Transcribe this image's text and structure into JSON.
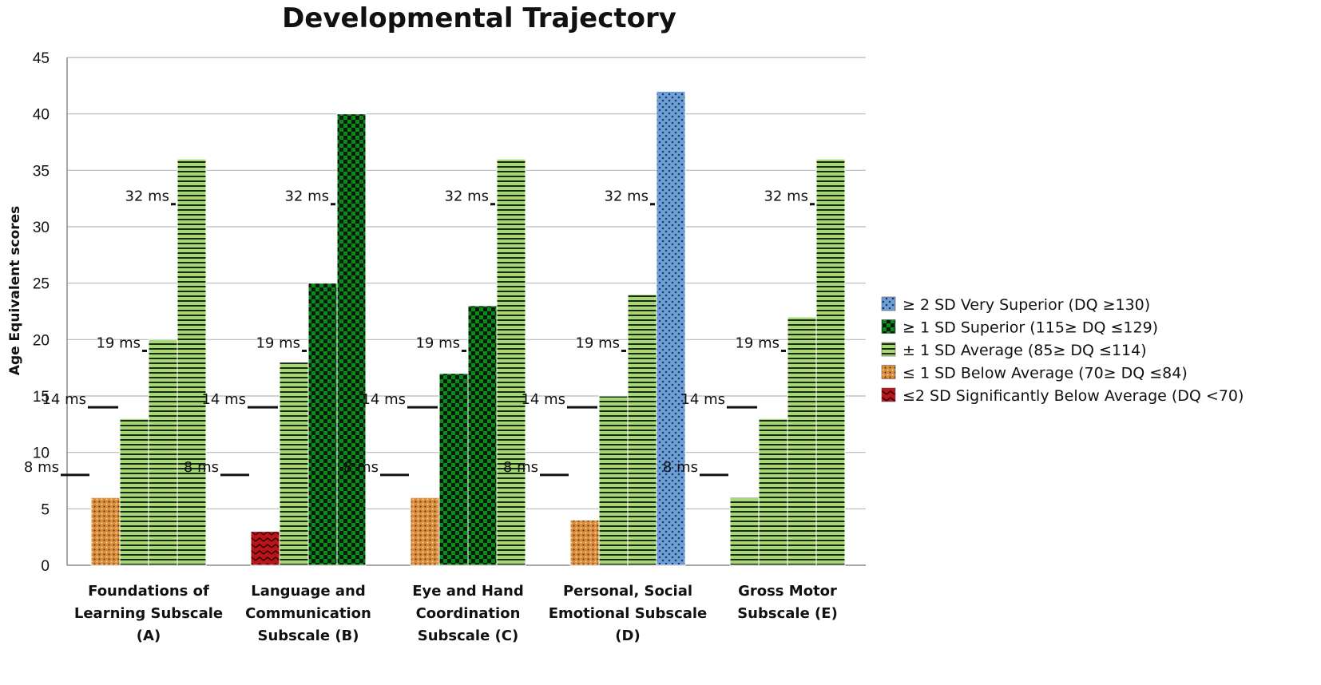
{
  "chart_data": {
    "type": "bar",
    "title": "Developmental Trajectory",
    "xlabel": "",
    "ylabel": "Age Equivalent scores",
    "ylim": [
      0,
      45
    ],
    "yticks": [
      "0",
      "5",
      "10",
      "15",
      "20",
      "25",
      "30",
      "35",
      "40",
      "45"
    ],
    "grid": true,
    "legend_position": "right",
    "categories": [
      [
        "Foundations of",
        "Learning Subscale",
        "(A)"
      ],
      [
        "Language and",
        "Communication",
        "Subscale (B)"
      ],
      [
        "Eye and Hand",
        "Coordination",
        "Subscale (C)"
      ],
      [
        "Personal, Social",
        "Emotional Subscale",
        "(D)"
      ],
      [
        "Gross Motor",
        "Subscale (E)"
      ]
    ],
    "legend": [
      {
        "key": "very_superior",
        "label": "≥ 2 SD Very Superior (DQ ≥130)",
        "color": "#6e9fd6"
      },
      {
        "key": "superior",
        "label": "≥ 1 SD Superior (115≥ DQ ≤129)",
        "color": "#0b8a1c"
      },
      {
        "key": "average",
        "label": "± 1 SD Average (85≥ DQ ≤114)",
        "color": "#a6d87a"
      },
      {
        "key": "below",
        "label": "≤ 1 SD Below Average (70≥ DQ ≤84)",
        "color": "#d98c3c"
      },
      {
        "key": "significantly_below",
        "label": "≤2 SD Significantly Below Average (DQ <70)",
        "color": "#b8161a"
      }
    ],
    "time_points": [
      "8 ms",
      "14 ms",
      "19 ms",
      "32 ms"
    ],
    "series": [
      {
        "name": "8 ms",
        "values": [
          6,
          3,
          6,
          4,
          6
        ],
        "classes": [
          "below",
          "significantly_below",
          "below",
          "below",
          "average"
        ]
      },
      {
        "name": "14 ms",
        "values": [
          13,
          18,
          17,
          15,
          13
        ],
        "classes": [
          "average",
          "average",
          "superior",
          "average",
          "average"
        ]
      },
      {
        "name": "19 ms",
        "values": [
          20,
          25,
          23,
          24,
          22
        ],
        "classes": [
          "average",
          "superior",
          "superior",
          "average",
          "average"
        ]
      },
      {
        "name": "32 ms",
        "values": [
          36,
          40,
          36,
          42,
          36
        ],
        "classes": [
          "average",
          "superior",
          "average",
          "very_superior",
          "average"
        ]
      }
    ]
  }
}
